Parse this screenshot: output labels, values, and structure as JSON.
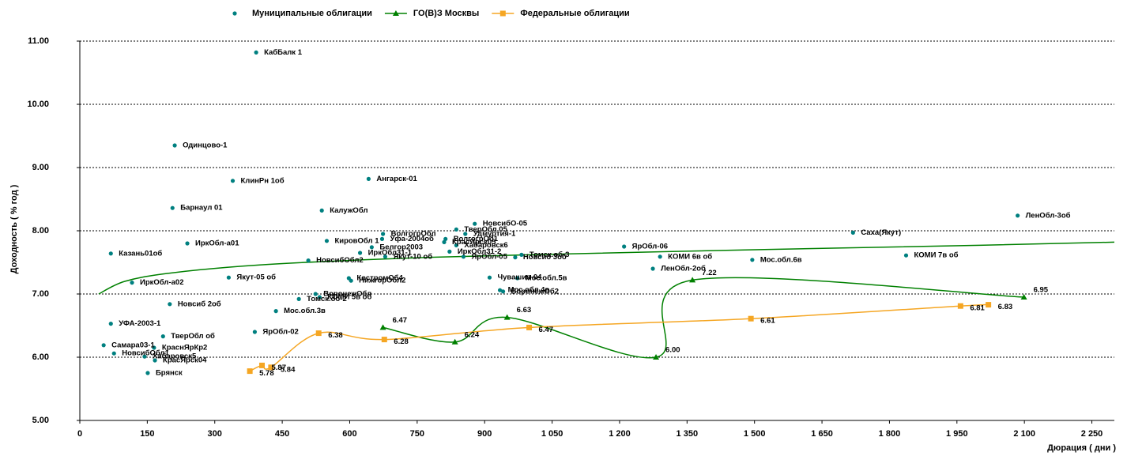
{
  "chart_data": {
    "type": "scatter",
    "xlabel": "Дюрация ( дни )",
    "ylabel": "Доходность ( % год )",
    "xlim": [
      0,
      2300
    ],
    "ylim": [
      5,
      11
    ],
    "xticks": [
      0,
      150,
      300,
      450,
      600,
      750,
      900,
      {
        "value": 1050,
        "label": "1 050"
      },
      {
        "value": 1200,
        "label": "1 200"
      },
      {
        "value": 1350,
        "label": "1 350"
      },
      {
        "value": 1500,
        "label": "1 500"
      },
      {
        "value": 1650,
        "label": "1 650"
      },
      {
        "value": 1800,
        "label": "1 800"
      },
      {
        "value": 1950,
        "label": "1 950"
      },
      {
        "value": 2100,
        "label": "2 100"
      },
      {
        "value": 2250,
        "label": "2 250"
      }
    ],
    "yticks": [
      {
        "value": 5,
        "label": "5.00"
      },
      {
        "value": 6,
        "label": "6.00"
      },
      {
        "value": 7,
        "label": "7.00"
      },
      {
        "value": 8,
        "label": "8.00"
      },
      {
        "value": 9,
        "label": "9.00"
      },
      {
        "value": 10,
        "label": "10.00"
      },
      {
        "value": 11,
        "label": "11.00"
      }
    ],
    "grid": true,
    "series": [
      {
        "name": "Муниципальные облигации",
        "type": "scatter",
        "color": "#008080",
        "labels": [
          "КабБалк 1",
          "Одинцово-1",
          "КлинРн 1об",
          "Ангарск-01",
          "Барнаул 01",
          "КалужОбл",
          "ЛенОбл-3об",
          "НовсибО-05",
          "ТверОбл 05",
          "Саха(Якут)",
          "ВолгогрОбл",
          "Удмуртия-1",
          "Уфа-2004об",
          "ВолгогрОб1",
          "ИркОбл-а01",
          "КировОбл 1",
          "КрасЯрск05",
          "Хабаровск6",
          "Белгор2003",
          "ЯрОбл-06",
          "ИркОбл31-1",
          "ИркОбл31-2",
          "Томск.об-3",
          "Казань01об",
          "КОМИ 6в об",
          "КОМИ 7в об",
          "Якут-10 об",
          "ЯрОбл-05",
          "Новсиб 3об",
          "НовсибОбл2",
          "Мос.обл.6в",
          "ЛенОбл-2об",
          "КостромОб4",
          "НижгорОбл2",
          "Чувашия-04",
          "Мос.обл.5в",
          "ИркОбл-а02",
          "Якут-05 об",
          "Мос.обл.4в",
          "ВоронежОб2",
          "ВоронежОбл",
          "КОМИ 5в об",
          "Томск.об-2",
          "Новсиб 2об",
          "Мос.обл.3в",
          "УФА-2003-1",
          "ЯрОбл-02",
          "ТверОбл об",
          "Самара03-1",
          "КраснЯрКр2",
          "НовсибОбл1",
          "Хабаровск5",
          "КрасЯрск04",
          "Брянск"
        ],
        "x": [
          392,
          211,
          340,
          642,
          206,
          538,
          2085,
          878,
          837,
          1719,
          674,
          857,
          672,
          813,
          239,
          549,
          810,
          837,
          649,
          1210,
          623,
          822,
          982,
          69,
          1290,
          1837,
          679,
          853,
          968,
          508,
          1495,
          1274,
          598,
          603,
          911,
          973,
          116,
          331,
          934,
          941,
          524,
          533,
          487,
          200,
          436,
          69,
          389,
          185,
          53,
          165,
          76,
          144,
          167,
          151
        ],
        "values": [
          10.82,
          9.35,
          8.79,
          8.82,
          8.36,
          8.32,
          8.24,
          8.11,
          8.02,
          7.97,
          7.95,
          7.95,
          7.87,
          7.87,
          7.8,
          7.84,
          7.82,
          7.77,
          7.74,
          7.75,
          7.65,
          7.67,
          7.62,
          7.64,
          7.59,
          7.61,
          7.59,
          7.59,
          7.58,
          7.53,
          7.54,
          7.4,
          7.25,
          7.21,
          7.26,
          7.25,
          7.18,
          7.26,
          7.06,
          7.04,
          7.0,
          6.95,
          6.92,
          6.84,
          6.73,
          6.53,
          6.4,
          6.33,
          6.19,
          6.15,
          6.06,
          6.01,
          5.95,
          5.75
        ]
      },
      {
        "name": "ГО(В)З Москвы",
        "type": "line",
        "color": "#008000",
        "marker": "triangle",
        "x": [
          674,
          834,
          950,
          1281,
          1362,
          2099
        ],
        "values": [
          6.47,
          6.24,
          6.63,
          6.0,
          7.22,
          6.95
        ],
        "value_labels": [
          "6.47",
          "6.24",
          "6.63",
          "6.00",
          "7.22",
          "6.95"
        ]
      },
      {
        "name": "Федеральные облигации",
        "type": "line",
        "color": "#f5a623",
        "marker": "square",
        "x": [
          378,
          405,
          425,
          531,
          677,
          999,
          1492,
          1958,
          2020
        ],
        "values": [
          5.78,
          5.87,
          5.84,
          6.38,
          6.28,
          6.47,
          6.61,
          6.81,
          6.83
        ],
        "value_labels": [
          "5.78",
          "5.87",
          "5.84",
          "6.38",
          "6.28",
          "6.47",
          "6.61",
          "6.81",
          "6.83"
        ]
      }
    ],
    "trend": {
      "color": "#008000",
      "x": [
        42,
        100,
        200,
        400,
        700,
        1000,
        1500,
        2000,
        2300
      ],
      "values": [
        7.0,
        7.2,
        7.33,
        7.46,
        7.56,
        7.62,
        7.7,
        7.77,
        7.82
      ]
    }
  }
}
